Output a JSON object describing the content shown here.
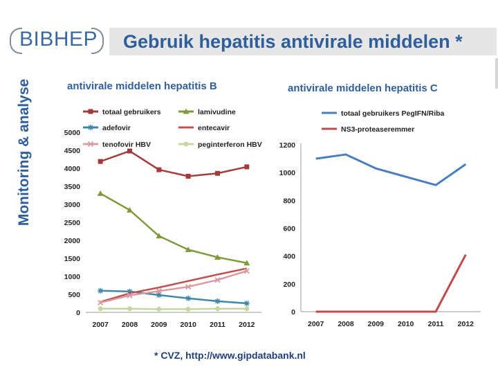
{
  "logo": {
    "text": "BIBHEP"
  },
  "header": {
    "title": "Gebruik hepatitis antivirale middelen *"
  },
  "sidebar": {
    "label": "Monitoring & analyse"
  },
  "footnote": "* CVZ, http://www.gipdatabank.nl",
  "chart_data": [
    {
      "type": "line",
      "title": "antivirale middelen hepatitis B",
      "xlabel": "",
      "ylabel": "",
      "x": [
        "2007",
        "2008",
        "2009",
        "2010",
        "2011",
        "2012"
      ],
      "ylim": [
        0,
        5000
      ],
      "yticks": [
        "0",
        "500",
        "1000",
        "1500",
        "2000",
        "2500",
        "3000",
        "3500",
        "4000",
        "4500",
        "5000"
      ],
      "grid": false,
      "legend": "top, two columns",
      "series": [
        {
          "name": "totaal gebruikers",
          "color": "#a33b3b",
          "marker": "square",
          "values": [
            4190,
            4480,
            3960,
            3780,
            3860,
            4040
          ]
        },
        {
          "name": "lamivudine",
          "color": "#7f9a3a",
          "marker": "triangle",
          "values": [
            3300,
            2840,
            2120,
            1740,
            1530,
            1370
          ]
        },
        {
          "name": "adefovir",
          "color": "#3f87a8",
          "marker": "star",
          "values": [
            600,
            580,
            480,
            390,
            310,
            250
          ]
        },
        {
          "name": "entecavir",
          "color": "#c0504d",
          "marker": "none",
          "values": [
            290,
            530,
            690,
            870,
            1050,
            1220
          ]
        },
        {
          "name": "tenofovir HBV",
          "color": "#d79aa0",
          "marker": "x",
          "values": [
            270,
            470,
            590,
            710,
            900,
            1150
          ]
        },
        {
          "name": "peginterferon HBV",
          "color": "#c5d6a0",
          "marker": "circle",
          "values": [
            100,
            100,
            90,
            90,
            100,
            100
          ]
        }
      ]
    },
    {
      "type": "line",
      "title": "antivirale middelen hepatitis C",
      "xlabel": "",
      "ylabel": "",
      "x": [
        "2007",
        "2008",
        "2009",
        "2010",
        "2011",
        "2012"
      ],
      "ylim": [
        0,
        1200
      ],
      "yticks": [
        "0",
        "200",
        "400",
        "600",
        "800",
        "1000",
        "1200"
      ],
      "grid": false,
      "legend": "top",
      "series": [
        {
          "name": "totaal gebruikers PegIFN/Riba",
          "color": "#4a7ebb",
          "marker": "none",
          "values": [
            1100,
            1130,
            1030,
            970,
            910,
            1060
          ]
        },
        {
          "name": "NS3-proteaseremmer",
          "color": "#be4b48",
          "marker": "none",
          "values": [
            0,
            0,
            0,
            0,
            0,
            410
          ]
        }
      ]
    }
  ]
}
